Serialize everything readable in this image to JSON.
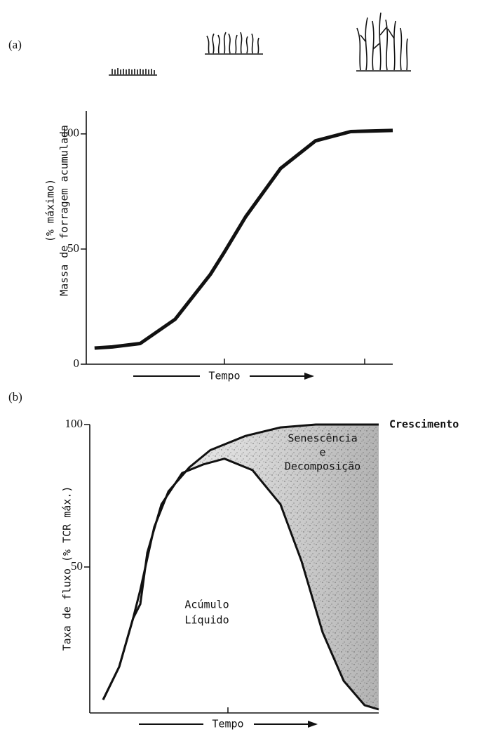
{
  "chart_data": [
    {
      "type": "line",
      "panel": "(a)",
      "ylabel": [
        "(% máximo)",
        "Massa de forragem acumulada"
      ],
      "xlabel": "Tempo",
      "xlim": [
        0,
        100
      ],
      "ylim": [
        0,
        110
      ],
      "yticks": [
        0,
        50,
        100
      ],
      "series": [
        {
          "color": "#111111",
          "x": [
            2.7,
            8.5,
            17.6,
            29,
            40.5,
            45,
            52,
            63.4,
            74.8,
            86.3,
            100
          ],
          "values": [
            7,
            7.5,
            9,
            19.5,
            39,
            48.5,
            64,
            85,
            97,
            101,
            101.5
          ]
        }
      ]
    },
    {
      "type": "line",
      "panel": "(b)",
      "ylabel": [
        "Taxa de fluxo (% TCR máx.)"
      ],
      "xlabel": "Tempo",
      "xlim": [
        0,
        100
      ],
      "ylim": [
        0,
        100
      ],
      "yticks": [
        50,
        100
      ],
      "fill_between": true,
      "annotations": [
        [
          "Senescência",
          "e",
          "Decomposição"
        ],
        [
          "Acúmulo",
          "Líquido"
        ]
      ],
      "series": [
        {
          "name": "Crescimento",
          "color": "#111111",
          "x": [
            4.6,
            10.2,
            15,
            17.5,
            22.3,
            27.2,
            34.5,
            41.7,
            53.9,
            66,
            78.2,
            100
          ],
          "values": [
            3.4,
            15,
            32,
            42,
            64,
            76.5,
            85,
            91,
            96,
            99,
            100,
            100
          ]
        },
        {
          "color": "#111111",
          "x": [
            4.6,
            10.2,
            15,
            17.5,
            19.9,
            24.8,
            32,
            39.3,
            46.6,
            56.3,
            66,
            73.3,
            80.6,
            87.9,
            95.1,
            100
          ],
          "values": [
            3.4,
            15,
            32,
            37,
            55,
            72,
            83,
            86,
            88,
            84,
            72,
            52,
            27,
            10,
            1.5,
            0
          ]
        }
      ]
    }
  ]
}
